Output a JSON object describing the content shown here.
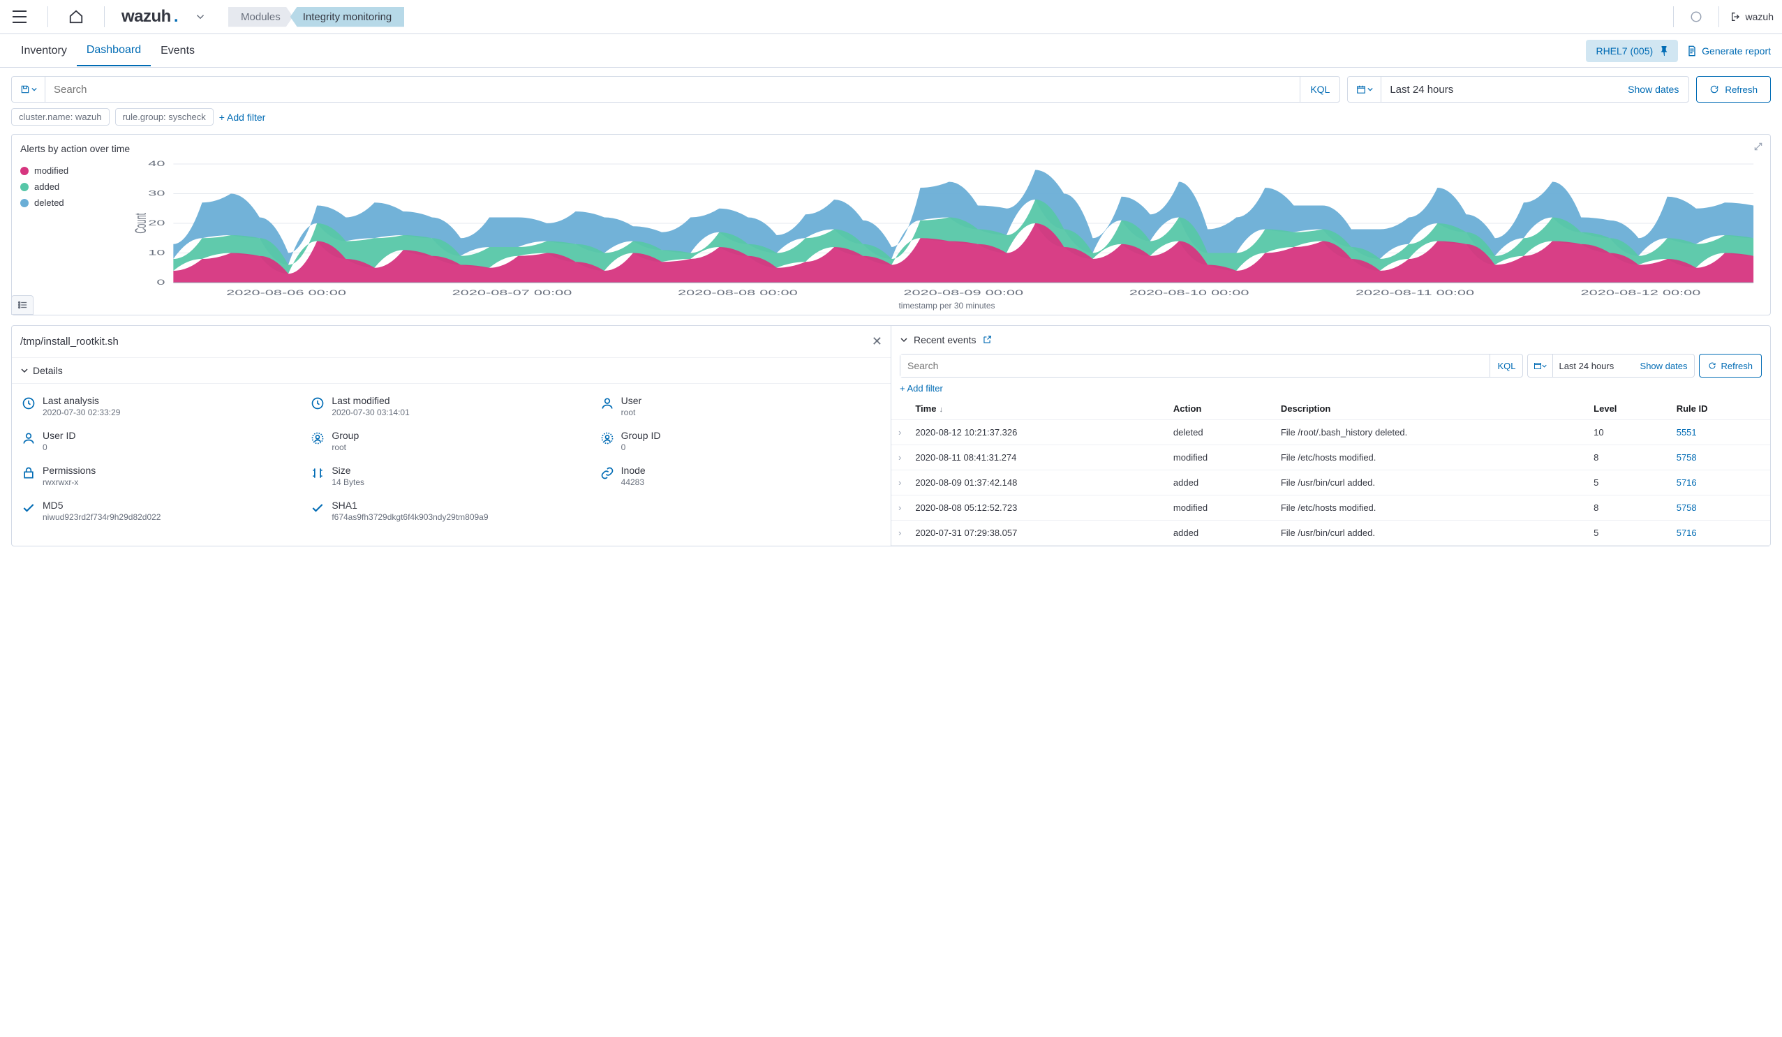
{
  "logo_text": "wazuh",
  "breadcrumb": {
    "modules": "Modules",
    "current": "Integrity monitoring"
  },
  "topbar_user": "wazuh",
  "tabs": {
    "inventory": "Inventory",
    "dashboard": "Dashboard",
    "events": "Events"
  },
  "agent_pill": "RHEL7 (005)",
  "generate_report": "Generate report",
  "search": {
    "placeholder": "Search",
    "kql": "KQL"
  },
  "daterange": {
    "label": "Last 24 hours",
    "show_dates": "Show dates"
  },
  "refresh": "Refresh",
  "filters": {
    "f1": "cluster.name: wazuh",
    "f2": "rule.group: syscheck",
    "add": "+ Add filter"
  },
  "chart": {
    "title": "Alerts by action over time",
    "ylabel": "Count",
    "xlabel": "timestamp per 30 minutes",
    "legend": {
      "modified": "modified",
      "added": "added",
      "deleted": "deleted"
    },
    "colors": {
      "modified": "#d6357f",
      "added": "#57c7a8",
      "deleted": "#6aaed6",
      "grid": "#e6e9ef",
      "axis_text": "#69707d"
    },
    "yticks": [
      0,
      10,
      20,
      30,
      40
    ],
    "ylim": [
      0,
      40
    ],
    "xticks": [
      "2020-08-06 00:00",
      "2020-08-07 00:00",
      "2020-08-08 00:00",
      "2020-08-09 00:00",
      "2020-08-10 00:00",
      "2020-08-11 00:00",
      "2020-08-12 00:00"
    ],
    "series": {
      "modified": [
        4,
        8,
        10,
        9,
        3,
        14,
        8,
        5,
        11,
        9,
        6,
        5,
        9,
        10,
        7,
        4,
        10,
        7,
        8,
        12,
        9,
        5,
        7,
        12,
        9,
        6,
        15,
        14,
        13,
        10,
        20,
        12,
        8,
        13,
        9,
        14,
        6,
        4,
        10,
        12,
        14,
        8,
        4,
        8,
        14,
        13,
        6,
        9,
        14,
        13,
        10,
        6,
        8,
        5,
        10,
        9
      ],
      "added": [
        4,
        7,
        6,
        6,
        3,
        6,
        6,
        10,
        5,
        6,
        3,
        7,
        3,
        4,
        6,
        6,
        4,
        4,
        2,
        5,
        4,
        5,
        8,
        6,
        4,
        2,
        6,
        8,
        5,
        6,
        8,
        6,
        2,
        8,
        5,
        8,
        4,
        6,
        8,
        5,
        4,
        4,
        4,
        5,
        6,
        4,
        3,
        6,
        8,
        4,
        5,
        3,
        7,
        8,
        6,
        6
      ],
      "deleted": [
        5,
        12,
        14,
        7,
        4,
        6,
        8,
        12,
        8,
        7,
        6,
        10,
        10,
        6,
        11,
        12,
        5,
        6,
        12,
        8,
        9,
        6,
        8,
        10,
        8,
        4,
        11,
        12,
        8,
        9,
        10,
        12,
        5,
        8,
        9,
        12,
        8,
        12,
        14,
        9,
        8,
        6,
        10,
        9,
        12,
        6,
        6,
        12,
        12,
        5,
        6,
        6,
        14,
        12,
        11,
        11
      ]
    }
  },
  "file_panel": {
    "path": "/tmp/install_rootkit.sh",
    "details_label": "Details",
    "items": [
      {
        "icon": "clock",
        "label": "Last analysis",
        "value": "2020-07-30 02:33:29"
      },
      {
        "icon": "clock",
        "label": "Last modified",
        "value": "2020-07-30 03:14:01"
      },
      {
        "icon": "user",
        "label": "User",
        "value": "root"
      },
      {
        "icon": "user",
        "label": "User ID",
        "value": "0"
      },
      {
        "icon": "group",
        "label": "Group",
        "value": "root"
      },
      {
        "icon": "group",
        "label": "Group ID",
        "value": "0"
      },
      {
        "icon": "lock",
        "label": "Permissions",
        "value": "rwxrwxr-x"
      },
      {
        "icon": "size",
        "label": "Size",
        "value": "14 Bytes"
      },
      {
        "icon": "link",
        "label": "Inode",
        "value": "44283"
      },
      {
        "icon": "check",
        "label": "MD5",
        "value": "niwud923rd2f734r9h29d82d022"
      },
      {
        "icon": "check",
        "label": "SHA1",
        "value": "f674as9fh3729dkgt6f4k903ndy29tm809a9"
      }
    ]
  },
  "recent": {
    "title": "Recent events",
    "search_placeholder": "Search",
    "kql": "KQL",
    "range": "Last 24 hours",
    "show_dates": "Show dates",
    "refresh": "Refresh",
    "add_filter": "+ Add filter",
    "columns": {
      "time": "Time",
      "action": "Action",
      "description": "Description",
      "level": "Level",
      "rule_id": "Rule ID"
    },
    "rows": [
      {
        "time": "2020-08-12  10:21:37.326",
        "action": "deleted",
        "description": "File /root/.bash_history deleted.",
        "level": "10",
        "rule_id": "5551"
      },
      {
        "time": "2020-08-11  08:41:31.274",
        "action": "modified",
        "description": "File  /etc/hosts  modified.",
        "level": "8",
        "rule_id": "5758"
      },
      {
        "time": "2020-08-09  01:37:42.148",
        "action": "added",
        "description": "File  /usr/bin/curl  added.",
        "level": "5",
        "rule_id": "5716"
      },
      {
        "time": "2020-08-08  05:12:52.723",
        "action": "modified",
        "description": "File  /etc/hosts  modified.",
        "level": "8",
        "rule_id": "5758"
      },
      {
        "time": "2020-07-31  07:29:38.057",
        "action": "added",
        "description": "File  /usr/bin/curl  added.",
        "level": "5",
        "rule_id": "5716"
      }
    ]
  }
}
